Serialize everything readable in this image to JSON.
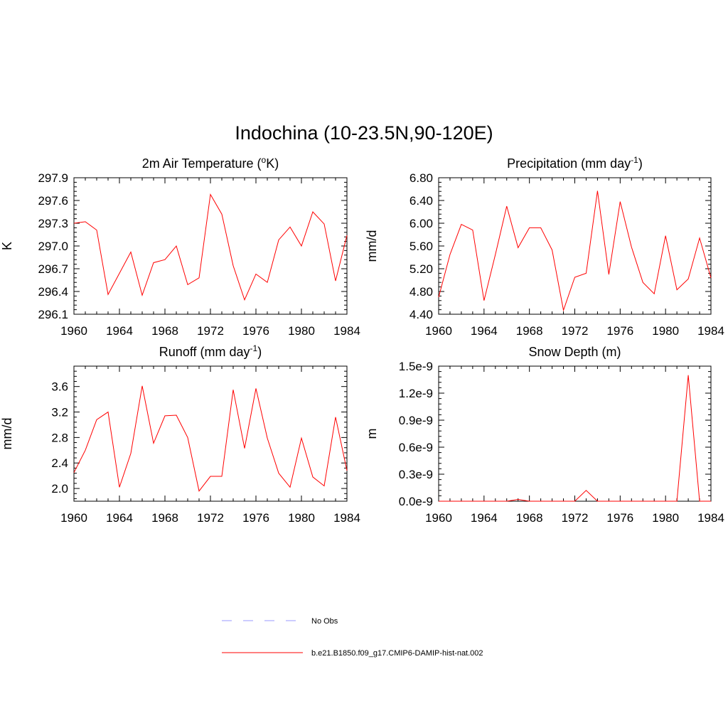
{
  "main_title": "Indochina (10-23.5N,90-120E)",
  "colors": {
    "series": "#ff0000",
    "obs": "#9999ff"
  },
  "legend": [
    {
      "label": "No Obs",
      "style": "dashed",
      "color": "#9999ff"
    },
    {
      "label": "b.e21.B1850.f09_g17.CMIP6-DAMIP-hist-nat.002",
      "style": "solid",
      "color": "#ff0000"
    }
  ],
  "chart_data": [
    {
      "type": "line",
      "title": "2m Air Temperature (",
      "title_sup": "o",
      "title_end": "K)",
      "ylabel": "K",
      "xlim": [
        1960,
        1984
      ],
      "ylim": [
        296.1,
        297.9
      ],
      "yticks": [
        296.1,
        296.4,
        296.7,
        297.0,
        297.3,
        297.6,
        297.9
      ],
      "ytick_labels": [
        "296.1",
        "296.4",
        "296.7",
        "297.0",
        "297.3",
        "297.6",
        "297.9"
      ],
      "xticks": [
        1960,
        1964,
        1968,
        1972,
        1976,
        1980,
        1984
      ],
      "xtick_labels": [
        "1960",
        "1964",
        "1968",
        "1972",
        "1976",
        "1980",
        "1984"
      ],
      "x": [
        1960,
        1961,
        1962,
        1963,
        1964,
        1965,
        1966,
        1967,
        1968,
        1969,
        1970,
        1971,
        1972,
        1973,
        1974,
        1975,
        1976,
        1977,
        1978,
        1979,
        1980,
        1981,
        1982,
        1983,
        1984
      ],
      "series": [
        {
          "name": "b.e21.B1850.f09_g17.CMIP6-DAMIP-hist-nat.002",
          "values": [
            297.3,
            297.32,
            297.21,
            296.36,
            296.64,
            296.92,
            296.35,
            296.78,
            296.82,
            297.0,
            296.49,
            296.58,
            297.68,
            297.42,
            296.74,
            296.29,
            296.63,
            296.52,
            297.08,
            297.25,
            297.0,
            297.45,
            297.29,
            296.54,
            297.14
          ]
        }
      ]
    },
    {
      "type": "line",
      "title": "Precipitation (mm day",
      "title_sup": "-1",
      "title_end": ")",
      "ylabel": "mm/d",
      "xlim": [
        1960,
        1984
      ],
      "ylim": [
        4.4,
        6.8
      ],
      "yticks": [
        4.4,
        4.8,
        5.2,
        5.6,
        6.0,
        6.4,
        6.8
      ],
      "ytick_labels": [
        "4.40",
        "4.80",
        "5.20",
        "5.60",
        "6.00",
        "6.40",
        "6.80"
      ],
      "xticks": [
        1960,
        1964,
        1968,
        1972,
        1976,
        1980,
        1984
      ],
      "xtick_labels": [
        "1960",
        "1964",
        "1968",
        "1972",
        "1976",
        "1980",
        "1984"
      ],
      "x": [
        1960,
        1961,
        1962,
        1963,
        1964,
        1965,
        1966,
        1967,
        1968,
        1969,
        1970,
        1971,
        1972,
        1973,
        1974,
        1975,
        1976,
        1977,
        1978,
        1979,
        1980,
        1981,
        1982,
        1983,
        1984
      ],
      "series": [
        {
          "name": "b.e21.B1850.f09_g17.CMIP6-DAMIP-hist-nat.002",
          "values": [
            4.7,
            5.45,
            5.98,
            5.88,
            4.64,
            5.45,
            6.3,
            5.57,
            5.92,
            5.92,
            5.53,
            4.47,
            5.05,
            5.12,
            6.57,
            5.1,
            6.38,
            5.58,
            4.96,
            4.76,
            5.78,
            4.83,
            5.02,
            5.74,
            5.04
          ]
        }
      ]
    },
    {
      "type": "line",
      "title": "Runoff (mm day",
      "title_sup": "-1",
      "title_end": ")",
      "ylabel": "mm/d",
      "xlim": [
        1960,
        1984
      ],
      "ylim": [
        1.8,
        3.92
      ],
      "yticks": [
        2.0,
        2.4,
        2.8,
        3.2,
        3.6
      ],
      "ytick_labels": [
        "2.0",
        "2.4",
        "2.8",
        "3.2",
        "3.6"
      ],
      "xticks": [
        1960,
        1964,
        1968,
        1972,
        1976,
        1980,
        1984
      ],
      "xtick_labels": [
        "1960",
        "1964",
        "1968",
        "1972",
        "1976",
        "1980",
        "1984"
      ],
      "x": [
        1960,
        1961,
        1962,
        1963,
        1964,
        1965,
        1966,
        1967,
        1968,
        1969,
        1970,
        1971,
        1972,
        1973,
        1974,
        1975,
        1976,
        1977,
        1978,
        1979,
        1980,
        1981,
        1982,
        1983,
        1984
      ],
      "series": [
        {
          "name": "b.e21.B1850.f09_g17.CMIP6-DAMIP-hist-nat.002",
          "values": [
            2.25,
            2.6,
            3.08,
            3.2,
            2.02,
            2.55,
            3.61,
            2.71,
            3.14,
            3.15,
            2.8,
            1.96,
            2.19,
            2.19,
            3.55,
            2.63,
            3.57,
            2.79,
            2.24,
            2.02,
            2.79,
            2.18,
            2.04,
            3.12,
            2.28
          ]
        }
      ]
    },
    {
      "type": "line",
      "title": "Snow Depth (m)",
      "title_sup": "",
      "title_end": "",
      "ylabel": "m",
      "xlim": [
        1960,
        1984
      ],
      "ylim": [
        0,
        1.5e-09
      ],
      "yticks": [
        0,
        3e-10,
        6e-10,
        9e-10,
        1.2e-09,
        1.5e-09
      ],
      "ytick_labels": [
        "0.0e-9",
        "0.3e-9",
        "0.6e-9",
        "0.9e-9",
        "1.2e-9",
        "1.5e-9"
      ],
      "xticks": [
        1960,
        1964,
        1968,
        1972,
        1976,
        1980,
        1984
      ],
      "xtick_labels": [
        "1960",
        "1964",
        "1968",
        "1972",
        "1976",
        "1980",
        "1984"
      ],
      "x": [
        1960,
        1961,
        1962,
        1963,
        1964,
        1965,
        1966,
        1967,
        1968,
        1969,
        1970,
        1971,
        1972,
        1973,
        1974,
        1975,
        1976,
        1977,
        1978,
        1979,
        1980,
        1981,
        1982,
        1983,
        1984
      ],
      "series": [
        {
          "name": "b.e21.B1850.f09_g17.CMIP6-DAMIP-hist-nat.002",
          "values": [
            0,
            0,
            0,
            0,
            0,
            0,
            0,
            2e-11,
            0,
            0,
            0,
            0,
            0,
            1.2e-10,
            0,
            0,
            0,
            0,
            0,
            0,
            0,
            0,
            1.4e-09,
            0,
            0
          ]
        }
      ]
    }
  ]
}
